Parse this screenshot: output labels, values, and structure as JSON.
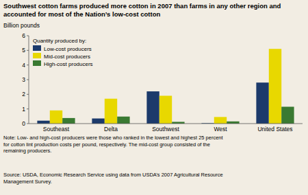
{
  "chart_data": {
    "type": "bar",
    "title": "Southwest cotton farms produced more cotton in 2007 than farms in any other region and\naccounted for most of the Nation’s low-cost cotton",
    "ylabel": "Billion pounds",
    "categories": [
      "Southeast",
      "Delta",
      "Southwest",
      "West",
      "United States"
    ],
    "series": [
      {
        "name": "Low-cost producers",
        "color": "#1c3a6b",
        "values": [
          0.2,
          0.35,
          2.2,
          0.03,
          2.8
        ]
      },
      {
        "name": "Mid-cost producers",
        "color": "#e8d800",
        "values": [
          0.9,
          1.7,
          1.9,
          0.45,
          5.1
        ]
      },
      {
        "name": "High-cost producers",
        "color": "#3a7a32",
        "values": [
          0.38,
          0.48,
          0.12,
          0.15,
          1.15
        ]
      }
    ],
    "ylim": [
      0,
      6
    ],
    "yticks": [
      0,
      1,
      2,
      3,
      4,
      5,
      6
    ],
    "legend_title": "Quantity produced by:",
    "legend": "upper left",
    "grid": false,
    "annotations": [
      "Note: Low- and high-cost producers were those who ranked in the lowest and highest 25 percent\nfor cotton lint production costs per pound, respectively. The mid-cost group consisted of the\nremaining producers.",
      "Source: USDA, Economic Research Service using data from USDA’s 2007 Agricultural Resource\nManagement Survey."
    ]
  }
}
